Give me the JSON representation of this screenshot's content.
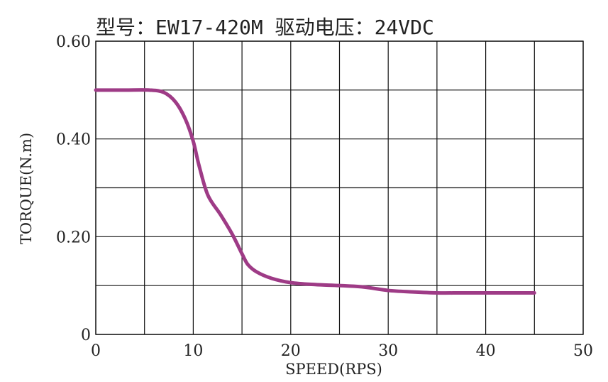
{
  "chart_data": {
    "type": "line",
    "title": "型号：EW17-420M   驱动电压：24VDC",
    "xlabel": "SPEED(RPS)",
    "ylabel": "TORQUE(N.m)",
    "xlim": [
      0,
      50
    ],
    "ylim": [
      0,
      0.6
    ],
    "grid": true,
    "x_ticks": [
      0,
      10,
      20,
      30,
      40,
      50
    ],
    "x_tick_labels": [
      "0",
      "10",
      "20",
      "30",
      "40",
      "50"
    ],
    "y_tick_labels": [
      {
        "value": 0,
        "label": "0"
      },
      {
        "value": 0.2,
        "label": "0.20"
      },
      {
        "value": 0.4,
        "label": "0.40"
      },
      {
        "value": 0.6,
        "label": "0.60"
      }
    ],
    "y_grid": [
      0,
      0.1,
      0.2,
      0.3,
      0.4,
      0.5,
      0.6
    ],
    "x_grid": [
      0,
      5,
      10,
      15,
      20,
      25,
      30,
      35,
      40,
      45,
      50
    ],
    "series": [
      {
        "color": "#9e3b86",
        "x": [
          0,
          3,
          5.5,
          7,
          8.2,
          9.2,
          10,
          10.6,
          11.5,
          12.8,
          14,
          15,
          15.6,
          16.5,
          18,
          20,
          22.5,
          25,
          27.5,
          30,
          32.5,
          35,
          37.5,
          40,
          42.5,
          45
        ],
        "y": [
          0.5,
          0.5,
          0.5,
          0.495,
          0.475,
          0.44,
          0.395,
          0.345,
          0.285,
          0.245,
          0.205,
          0.165,
          0.143,
          0.128,
          0.115,
          0.106,
          0.102,
          0.1,
          0.097,
          0.09,
          0.087,
          0.085,
          0.085,
          0.085,
          0.085,
          0.085
        ]
      }
    ]
  }
}
